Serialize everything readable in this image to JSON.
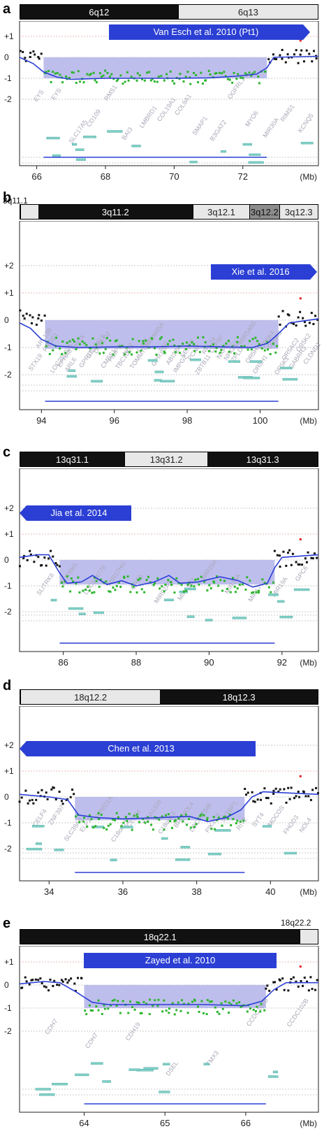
{
  "chart_data": [
    {
      "type": "scatter",
      "panel_label": "a",
      "ideogram": [
        {
          "name": "6q12",
          "shade": "dark",
          "start": 0.0,
          "end": 0.53
        },
        {
          "name": "6q13",
          "shade": "light",
          "start": 0.53,
          "end": 1.0
        }
      ],
      "top_left_band": "",
      "top_right_band": "",
      "study_label": "Van Esch et al. 2010 (Pt1)",
      "arrow_direction": "right",
      "x_ticks": [
        "66",
        "68",
        "70",
        "72",
        "(Mb)"
      ],
      "x_tick_values": [
        66,
        68,
        70,
        72
      ],
      "y_ticks": [
        "+1",
        "0",
        "-1",
        "-2"
      ],
      "y_tick_values": [
        1,
        0,
        -1,
        -2
      ],
      "xlim": [
        65.5,
        74.2
      ],
      "ylim": [
        -2.8,
        1.3
      ],
      "deletion_region": [
        66.2,
        72.7
      ],
      "deletion_level": -0.85,
      "smooth_line": [
        [
          65.5,
          0.0
        ],
        [
          65.9,
          -0.3
        ],
        [
          66.2,
          -0.7
        ],
        [
          66.6,
          -0.95
        ],
        [
          67.0,
          -1.05
        ],
        [
          68.0,
          -1.0
        ],
        [
          69.0,
          -1.0
        ],
        [
          70.0,
          -1.0
        ],
        [
          71.0,
          -0.98
        ],
        [
          71.8,
          -0.9
        ],
        [
          72.4,
          -0.8
        ],
        [
          72.7,
          -0.5
        ],
        [
          72.9,
          0.0
        ],
        [
          74.2,
          0.05
        ]
      ],
      "genes": [
        "EYS",
        "EYS",
        "SLC17A5",
        "CD109",
        "RMS1",
        "BAI3",
        "LMBRD1",
        "COL19A1",
        "COL9A1",
        "SMAP1",
        "B3GAT2",
        "OGFRL1",
        "MYO6",
        "MIR30A",
        "RIMS1",
        "KCNQ5"
      ],
      "colors": {
        "normal": "#111111",
        "loss": "#2db52d",
        "region": "#b3b3ea",
        "line": "#2b3fd4",
        "arrow": "#2b3fd4",
        "gain": "#e02020"
      }
    },
    {
      "type": "scatter",
      "panel_label": "b",
      "ideogram": [
        {
          "name": "",
          "shade": "light",
          "start": 0.0,
          "end": 0.06
        },
        {
          "name": "3q11.2",
          "shade": "dark",
          "start": 0.06,
          "end": 0.58
        },
        {
          "name": "3q12.1",
          "shade": "light",
          "start": 0.58,
          "end": 0.77
        },
        {
          "name": "3q12.2",
          "shade": "mid",
          "start": 0.77,
          "end": 0.87
        },
        {
          "name": "3q12.3",
          "shade": "light",
          "start": 0.87,
          "end": 1.0
        }
      ],
      "top_left_band": "3q11.1",
      "top_right_band": "",
      "study_label": "Xie et al. 2016",
      "arrow_direction": "right",
      "x_ticks": [
        "94",
        "96",
        "98",
        "100",
        "(Mb)"
      ],
      "x_tick_values": [
        94,
        96,
        98,
        100
      ],
      "y_ticks": [
        "+2",
        "+1",
        "0",
        "-1",
        "-2"
      ],
      "y_tick_values": [
        2,
        1,
        0,
        -1,
        -2
      ],
      "xlim": [
        93.4,
        101.6
      ],
      "ylim": [
        -2.8,
        2.8
      ],
      "deletion_region": [
        94.1,
        100.5
      ],
      "deletion_level": -0.9,
      "smooth_line": [
        [
          93.4,
          -0.1
        ],
        [
          93.7,
          -0.3
        ],
        [
          94.0,
          -0.7
        ],
        [
          94.4,
          -0.95
        ],
        [
          95.0,
          -1.0
        ],
        [
          96.0,
          -0.98
        ],
        [
          97.0,
          -0.98
        ],
        [
          98.0,
          -0.95
        ],
        [
          99.0,
          -0.98
        ],
        [
          99.8,
          -1.0
        ],
        [
          100.2,
          -0.85
        ],
        [
          100.5,
          -0.5
        ],
        [
          100.8,
          -0.1
        ],
        [
          101.6,
          0.05
        ]
      ],
      "genes": [
        "STX19",
        "ARL13B",
        "PROS1",
        "LOC255025",
        "EPHA6",
        "ARL6",
        "CPOX",
        "GPR15",
        "ST3GAL6",
        "DCBLD2",
        "CMSS1",
        "FILIP1L",
        "TBC1D23",
        "NIT2",
        "TOMM70A",
        "LNP1",
        "TMEM45A",
        "GPR128",
        "TFG",
        "ABI3BP",
        "IMPG2",
        "SENP7",
        "PCNP",
        "ZBTB11",
        "RPL24",
        "CEP97",
        "NXPE3",
        "NFKBIZ",
        "ZPLD1",
        "MIR548G",
        "OR5H14",
        "OR5H1",
        "OR5K4",
        "OR5K3",
        "OR5K1",
        "OR5AC2",
        "GABRR3",
        "OR5K2",
        "CLDND1"
      ],
      "colors": {
        "normal": "#111111",
        "loss": "#2db52d",
        "region": "#b3b3ea",
        "line": "#2b3fd4",
        "arrow": "#2b3fd4",
        "gain": "#e02020"
      }
    },
    {
      "type": "scatter",
      "panel_label": "c",
      "ideogram": [
        {
          "name": "13q31.1",
          "shade": "dark",
          "start": 0.0,
          "end": 0.35
        },
        {
          "name": "13q31.2",
          "shade": "light",
          "start": 0.35,
          "end": 0.63
        },
        {
          "name": "13q31.3",
          "shade": "dark",
          "start": 0.63,
          "end": 1.0
        }
      ],
      "top_left_band": "",
      "top_right_band": "",
      "study_label": "Jia et al. 2014",
      "arrow_direction": "left",
      "x_ticks": [
        "86",
        "88",
        "90",
        "92",
        "(Mb)"
      ],
      "x_tick_values": [
        86,
        88,
        90,
        92
      ],
      "y_ticks": [
        "+2",
        "+1",
        "0",
        "-1",
        "-2"
      ],
      "y_tick_values": [
        2,
        1,
        0,
        -1,
        -2
      ],
      "xlim": [
        84.8,
        93.0
      ],
      "ylim": [
        -2.8,
        2.8
      ],
      "deletion_region": [
        85.9,
        91.8
      ],
      "deletion_level": -0.8,
      "smooth_line": [
        [
          84.8,
          0.1
        ],
        [
          85.3,
          0.2
        ],
        [
          85.6,
          0.2
        ],
        [
          85.9,
          -0.5
        ],
        [
          86.1,
          -0.9
        ],
        [
          86.5,
          -0.85
        ],
        [
          86.8,
          -0.6
        ],
        [
          87.2,
          -0.95
        ],
        [
          87.6,
          -0.8
        ],
        [
          88.0,
          -1.0
        ],
        [
          88.5,
          -0.85
        ],
        [
          88.9,
          -0.6
        ],
        [
          89.2,
          -0.9
        ],
        [
          89.7,
          -0.85
        ],
        [
          90.3,
          -0.65
        ],
        [
          90.8,
          -0.8
        ],
        [
          91.2,
          -1.05
        ],
        [
          91.6,
          -0.9
        ],
        [
          91.8,
          -0.3
        ],
        [
          92.0,
          0.1
        ],
        [
          93.0,
          0.2
        ]
      ],
      "genes": [
        "SLITRK6",
        "SLITRK5",
        "LOC144776",
        "MIR17HG",
        "GPC5",
        "MIR92A1",
        "MIR19B1",
        "MIR20A",
        "MIR18A",
        "MIR17",
        "MIR19A",
        "GPC6"
      ],
      "colors": {
        "normal": "#111111",
        "loss": "#2db52d",
        "region": "#b3b3ea",
        "line": "#2b3fd4",
        "arrow": "#2b3fd4",
        "gain": "#e02020"
      }
    },
    {
      "type": "scatter",
      "panel_label": "d",
      "ideogram": [
        {
          "name": "18q12.2",
          "shade": "light",
          "start": 0.0,
          "end": 0.47
        },
        {
          "name": "18q12.3",
          "shade": "dark",
          "start": 0.47,
          "end": 1.0
        }
      ],
      "top_left_band": "",
      "top_right_band": "",
      "study_label": "Chen et al. 2013",
      "arrow_direction": "left",
      "x_ticks": [
        "34",
        "36",
        "38",
        "40",
        "(Mb)"
      ],
      "x_tick_values": [
        34,
        36,
        38,
        40
      ],
      "y_ticks": [
        "+2",
        "+1",
        "0",
        "-1",
        "-2"
      ],
      "y_tick_values": [
        2,
        1,
        0,
        -1,
        -2
      ],
      "xlim": [
        33.2,
        41.3
      ],
      "ylim": [
        -2.8,
        2.8
      ],
      "deletion_region": [
        34.7,
        39.3
      ],
      "deletion_level": -0.75,
      "smooth_line": [
        [
          33.2,
          0.1
        ],
        [
          33.6,
          0.05
        ],
        [
          34.0,
          0.0
        ],
        [
          34.5,
          -0.1
        ],
        [
          34.8,
          -0.7
        ],
        [
          35.3,
          -0.8
        ],
        [
          36.0,
          -0.85
        ],
        [
          37.0,
          -0.8
        ],
        [
          37.8,
          -0.75
        ],
        [
          38.3,
          -0.95
        ],
        [
          38.8,
          -0.8
        ],
        [
          39.2,
          -0.5
        ],
        [
          39.5,
          0.0
        ],
        [
          39.8,
          0.2
        ],
        [
          41.3,
          0.1
        ]
      ],
      "genes": [
        "CELF4",
        "ZNF397",
        "SLC39A6",
        "ELP2",
        "RPRD1A",
        "C18orf21",
        "CELF4",
        "KIAA1328",
        "C18orf10",
        "BRUNOL4",
        "LOC647946",
        "PIK3C3",
        "SETBP1",
        "RIT2",
        "SYT4",
        "MOCOS",
        "FHOD3",
        "NOL4"
      ],
      "colors": {
        "normal": "#111111",
        "loss": "#2db52d",
        "region": "#b3b3ea",
        "line": "#2b3fd4",
        "arrow": "#2b3fd4",
        "gain": "#e02020"
      }
    },
    {
      "type": "scatter",
      "panel_label": "e",
      "ideogram": [
        {
          "name": "18q22.1",
          "shade": "dark",
          "start": 0.0,
          "end": 0.94
        },
        {
          "name": "",
          "shade": "light",
          "start": 0.94,
          "end": 1.0
        }
      ],
      "top_left_band": "",
      "top_right_band": "18q22.2",
      "study_label": "Zayed et al. 2010",
      "arrow_direction": "none",
      "x_ticks": [
        "64",
        "65",
        "66",
        "(Mb)"
      ],
      "x_tick_values": [
        64,
        65,
        66
      ],
      "y_ticks": [
        "+1",
        "0",
        "-1",
        "-2"
      ],
      "y_tick_values": [
        1,
        0,
        -1,
        -2
      ],
      "xlim": [
        63.2,
        66.9
      ],
      "ylim": [
        -2.8,
        1.3
      ],
      "deletion_region": [
        64.0,
        66.25
      ],
      "deletion_level": -0.85,
      "smooth_line": [
        [
          63.2,
          0.05
        ],
        [
          63.5,
          0.15
        ],
        [
          63.7,
          0.1
        ],
        [
          63.9,
          -0.3
        ],
        [
          64.1,
          -0.75
        ],
        [
          64.3,
          -0.85
        ],
        [
          65.0,
          -0.85
        ],
        [
          65.5,
          -0.85
        ],
        [
          66.0,
          -0.9
        ],
        [
          66.2,
          -0.7
        ],
        [
          66.35,
          -0.2
        ],
        [
          66.5,
          0.1
        ],
        [
          66.9,
          0.1
        ]
      ],
      "genes": [
        "CDH7",
        "CDH7",
        "CDH19",
        "DSEL",
        "TMX3",
        "CCDC102B",
        "CCDC102B"
      ],
      "colors": {
        "normal": "#111111",
        "loss": "#2db52d",
        "region": "#b3b3ea",
        "line": "#2b3fd4",
        "arrow": "#2b3fd4",
        "gain": "#e02020"
      }
    }
  ]
}
